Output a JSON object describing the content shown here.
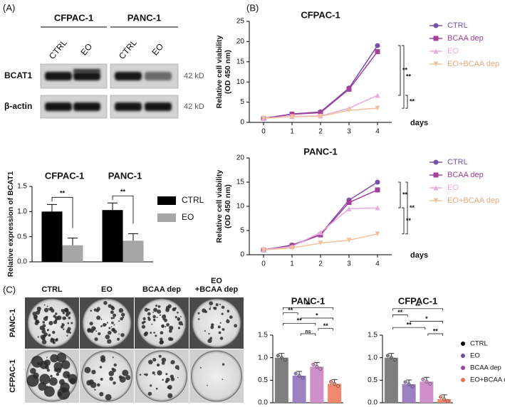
{
  "figure": {
    "panel_labels": [
      "(A)",
      "(B)",
      "(C)"
    ],
    "blot": {
      "cell_lines": [
        "CFPAC-1",
        "PANC-1"
      ],
      "lanes": [
        "CTRL",
        "EO",
        "CTRL",
        "EO"
      ],
      "proteins": [
        "BCAT1",
        "β-actin"
      ],
      "sizes": [
        "42 kD",
        "42 kD"
      ]
    },
    "colony": {
      "conditions": [
        [
          "CTRL"
        ],
        [
          "EO"
        ],
        [
          "BCAA dep"
        ],
        [
          "EO",
          "+BCAA dep"
        ]
      ],
      "rows": [
        "PANC-1",
        "CFPAC-1"
      ]
    }
  },
  "chart_data": [
    {
      "type": "bar",
      "categories": [
        "CFPAC-1",
        "PANC-1"
      ],
      "ylabel": [
        "Relative expression of BCAT1"
      ],
      "series": [
        {
          "name": "CTRL",
          "color": "#000000",
          "values": [
            1.0,
            1.03
          ]
        },
        {
          "name": "EO",
          "color": "#a6a6a6",
          "values": [
            0.33,
            0.42
          ]
        }
      ],
      "ylim": [
        0,
        1.5
      ],
      "yticks": [
        {
          "value": 0,
          "label": "0.0"
        },
        {
          "value": 0.5,
          "label": "0.5"
        },
        {
          "value": 1,
          "label": "1.0"
        },
        {
          "value": 1.5,
          "label": "1.5"
        }
      ],
      "group_annotations": [
        "**",
        "**"
      ]
    },
    {
      "type": "line",
      "title": "CFPAC-1",
      "xlabel": "days",
      "ylabel": [
        "Relative cell viability",
        "(OD 450 nm)"
      ],
      "x": [
        0,
        1,
        2,
        3,
        4
      ],
      "xlim": [
        -0.5,
        4.5
      ],
      "xticks": [
        0,
        1,
        2,
        3,
        4
      ],
      "ylim": [
        0,
        25
      ],
      "yticks": [
        0,
        5,
        10,
        15,
        20,
        25
      ],
      "series": [
        {
          "name": "CTRL",
          "color": "#7b4fa8",
          "marker": "circle",
          "values": [
            1,
            2.1,
            2.6,
            8.5,
            19
          ]
        },
        {
          "name": "BCAA dep",
          "color": "#a3409a",
          "marker": "square",
          "values": [
            1,
            2,
            2.4,
            8.2,
            17.5
          ]
        },
        {
          "name": "EO",
          "color": "#e9a9dd",
          "marker": "triangle-up",
          "values": [
            1,
            1.5,
            1.6,
            3.5,
            6.7
          ]
        },
        {
          "name": "EO+BCAA dep",
          "color": "#f2c29f",
          "marker": "triangle-down",
          "values": [
            1,
            1.4,
            1.5,
            3,
            3.5
          ]
        }
      ],
      "comparisons": [
        {
          "pair": [
            0,
            2
          ],
          "label": "**"
        },
        {
          "pair": [
            0,
            3
          ],
          "label": "**"
        },
        {
          "pair": [
            2,
            3
          ],
          "label": "**"
        }
      ]
    },
    {
      "type": "line",
      "title": "PANC-1",
      "xlabel": "days",
      "ylabel": [
        "Relative cell viability",
        "(OD 450 nm)"
      ],
      "x": [
        0,
        1,
        2,
        3,
        4
      ],
      "xlim": [
        -0.5,
        4.5
      ],
      "xticks": [
        0,
        1,
        2,
        3,
        4
      ],
      "ylim": [
        0,
        20
      ],
      "yticks": [
        0,
        5,
        10,
        15,
        20
      ],
      "series": [
        {
          "name": "CTRL",
          "color": "#7b4fa8",
          "marker": "circle",
          "values": [
            1,
            2,
            4.2,
            11.3,
            15
          ]
        },
        {
          "name": "BCAA dep",
          "color": "#a3409a",
          "marker": "square",
          "values": [
            1,
            1.9,
            4.1,
            10.8,
            13.4
          ]
        },
        {
          "name": "EO",
          "color": "#e9a9dd",
          "marker": "triangle-up",
          "values": [
            1,
            1.7,
            4.6,
            9.5,
            9.7
          ]
        },
        {
          "name": "EO+BCAA dep",
          "color": "#f2c29f",
          "marker": "triangle-down",
          "values": [
            1,
            1.4,
            2.4,
            3,
            4.3
          ]
        }
      ],
      "comparisons": [
        {
          "pair": [
            0,
            2
          ],
          "label": "**"
        },
        {
          "pair": [
            2,
            3
          ],
          "label": "**"
        },
        {
          "pair": [
            0,
            3
          ],
          "label": "**"
        }
      ]
    },
    {
      "type": "bar",
      "title": "PANC-1",
      "values": [
        1.0,
        0.6,
        0.8,
        0.42
      ],
      "colors": [
        "#7f7f7f",
        "#9b80c2",
        "#cf8fc9",
        "#f0896d"
      ],
      "ylim": [
        0,
        1.5
      ],
      "yticks": [
        {
          "value": 0,
          "label": "0.0"
        },
        {
          "value": 0.5,
          "label": "0.5"
        },
        {
          "value": 1,
          "label": "1.0"
        },
        {
          "value": 1.5,
          "label": "1.5"
        }
      ],
      "comparisons": [
        {
          "pair": [
            1,
            2
          ],
          "label": "ns"
        },
        {
          "pair": [
            2,
            3
          ],
          "label": "**"
        },
        {
          "pair": [
            0,
            2
          ],
          "label": "**"
        },
        {
          "pair": [
            1,
            3
          ],
          "label": "*"
        },
        {
          "pair": [
            0,
            1
          ],
          "label": "**"
        },
        {
          "pair": [
            0,
            3
          ],
          "label": "**"
        }
      ]
    },
    {
      "type": "bar",
      "title": "CFPAC-1",
      "categories": [
        "CTRL",
        "EO",
        "BCAA dep",
        "EO+BCAA dep"
      ],
      "values": [
        1.0,
        0.41,
        0.47,
        0.08
      ],
      "colors": [
        "#7f7f7f",
        "#9b80c2",
        "#cf8fc9",
        "#f0896d"
      ],
      "legend_colors": [
        "#000000",
        "#6b4fa5",
        "#a0409f",
        "#f07050"
      ],
      "ylim": [
        0,
        1.5
      ],
      "yticks": [
        {
          "value": 0,
          "label": "0.0"
        },
        {
          "value": 0.5,
          "label": "0.5"
        },
        {
          "value": 1,
          "label": "1.0"
        },
        {
          "value": 1.5,
          "label": "1.5"
        }
      ],
      "comparisons": [
        {
          "pair": [
            2,
            3
          ],
          "label": "**"
        },
        {
          "pair": [
            0,
            2
          ],
          "label": "**"
        },
        {
          "pair": [
            1,
            3
          ],
          "label": "*"
        },
        {
          "pair": [
            0,
            1
          ],
          "label": "**"
        },
        {
          "pair": [
            0,
            3
          ],
          "label": "**"
        }
      ]
    }
  ]
}
